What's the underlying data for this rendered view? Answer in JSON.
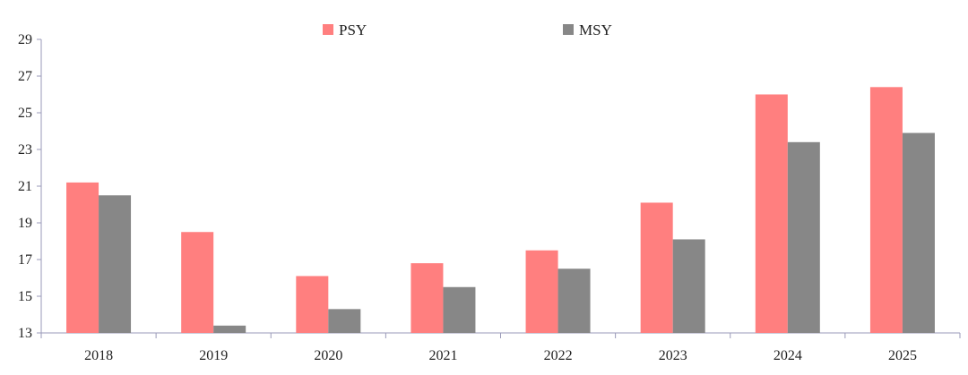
{
  "chart_data": {
    "type": "bar",
    "title": "",
    "xlabel": "",
    "ylabel": "",
    "categories": [
      "2018",
      "2019",
      "2020",
      "2021",
      "2022",
      "2023",
      "2024",
      "2025"
    ],
    "series": [
      {
        "name": "PSY",
        "color": "#ff7f7f",
        "values": [
          21.2,
          18.5,
          16.1,
          16.8,
          17.5,
          20.1,
          26.0,
          26.4
        ]
      },
      {
        "name": "MSY",
        "color": "#878787",
        "values": [
          20.5,
          13.4,
          14.3,
          15.5,
          16.5,
          18.1,
          23.4,
          23.9
        ]
      }
    ],
    "ylim": [
      13,
      29
    ],
    "yticks": [
      13,
      15,
      17,
      19,
      21,
      23,
      25,
      27,
      29
    ],
    "grid": false,
    "legend_position": "top-center",
    "axis_color": "#9a9ab8"
  }
}
